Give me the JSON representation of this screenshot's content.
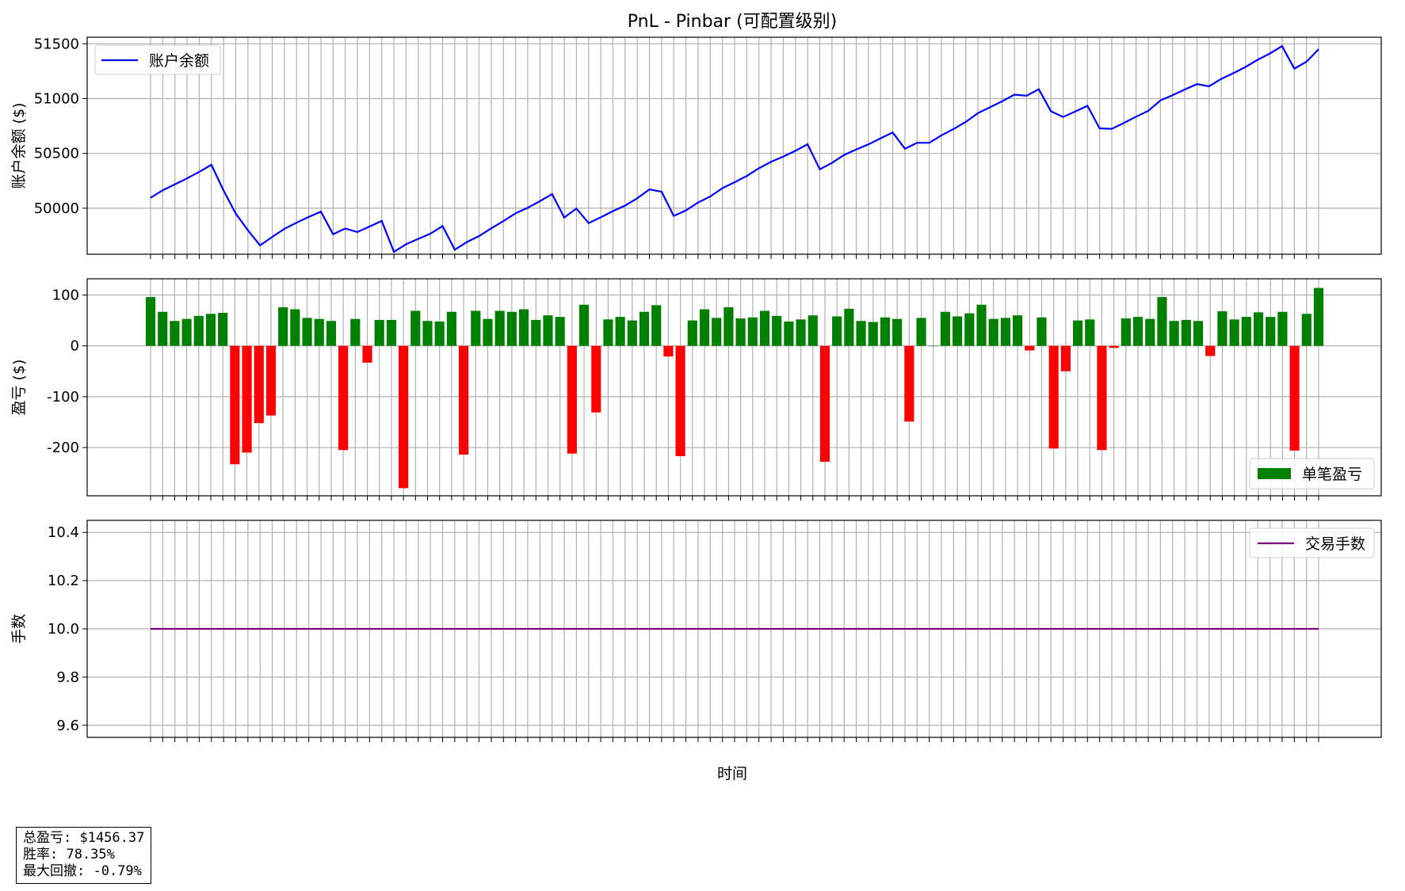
{
  "chart_data": [
    {
      "type": "line",
      "title": "PnL - Pinbar (可配置级别)",
      "ylabel": "账户余额 ($)",
      "ylim": [
        49580,
        51560
      ],
      "yticks": [
        50000,
        50500,
        51000,
        51500
      ],
      "grid": true,
      "legend_position": "upper-left",
      "color": "#0000ff",
      "series": [
        {
          "name": "账户余额",
          "values": [
            50095,
            50164,
            50217,
            50272,
            50331,
            50396,
            50162,
            49951,
            49799,
            49661,
            49738,
            49812,
            49868,
            49920,
            49969,
            49762,
            49815,
            49782,
            49833,
            49884,
            49602,
            49671,
            49720,
            49768,
            49837,
            49621,
            49691,
            49746,
            49816,
            49883,
            49953,
            50004,
            50064,
            50129,
            49915,
            49996,
            49864,
            49917,
            49974,
            50024,
            50091,
            50171,
            50150,
            49930,
            49980,
            50052,
            50107,
            50183,
            50237,
            50294,
            50364,
            50423,
            50471,
            50524,
            50584,
            50355,
            50413,
            50486,
            50535,
            50582,
            50638,
            50691,
            50542,
            50597,
            50597,
            50665,
            50723,
            50787,
            50868,
            50921,
            50976,
            51036,
            51026,
            51086,
            50884,
            50832,
            50882,
            50934,
            50728,
            50724,
            50778,
            50835,
            50888,
            50983,
            51032,
            51083,
            51132,
            51112,
            51180,
            51232,
            51289,
            51355,
            51412,
            51479,
            51273,
            51336,
            51450
          ]
        }
      ]
    },
    {
      "type": "bar",
      "ylabel": "盈亏 ($)",
      "ylim": [
        -295,
        132
      ],
      "yticks": [
        -200,
        -100,
        0,
        100
      ],
      "grid": true,
      "legend_position": "lower-right",
      "positive_color": "#008000",
      "negative_color": "#ff0000",
      "series": [
        {
          "name": "单笔盈亏",
          "values": [
            96,
            67,
            49,
            53,
            59,
            63,
            65,
            -233,
            -210,
            -152,
            -137,
            76,
            72,
            55,
            53,
            49,
            -205,
            53,
            -33,
            51,
            51,
            -280,
            69,
            49,
            48,
            67,
            -214,
            69,
            53,
            69,
            67,
            72,
            51,
            60,
            57,
            -212,
            81,
            -131,
            52,
            57,
            50,
            67,
            80,
            -21,
            -217,
            50,
            72,
            55,
            76,
            54,
            56,
            69,
            59,
            48,
            52,
            60,
            -228,
            58,
            73,
            49,
            47,
            56,
            53,
            -149,
            55,
            0,
            67,
            58,
            64,
            81,
            53,
            55,
            60,
            -9,
            56,
            -202,
            -50,
            50,
            52,
            -205,
            -4,
            54,
            57,
            53,
            96,
            49,
            51,
            49,
            -20,
            68,
            52,
            57,
            66,
            57,
            67,
            -206,
            63,
            114
          ]
        }
      ]
    },
    {
      "type": "line",
      "ylabel": "手数",
      "xlabel": "时间",
      "ylim": [
        9.55,
        10.45
      ],
      "yticks": [
        9.6,
        9.8,
        10.0,
        10.2,
        10.4
      ],
      "grid": true,
      "legend_position": "upper-right",
      "color": "#800080",
      "series": [
        {
          "name": "交易手数",
          "values": [
            10.0,
            10.0
          ]
        }
      ]
    }
  ],
  "stats": {
    "total_pnl": "总盈亏: $1456.37",
    "win_rate": "胜率: 78.35%",
    "max_drawdown": "最大回撤: -0.79%"
  }
}
